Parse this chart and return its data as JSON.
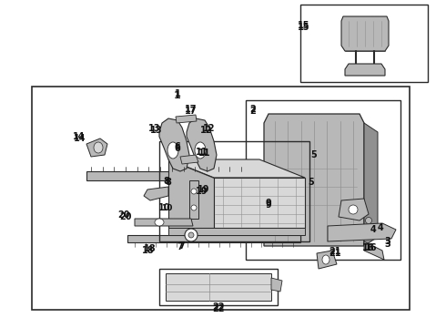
{
  "bg_color": "#ffffff",
  "lc": "#2a2a2a",
  "gray1": "#d8d8d8",
  "gray2": "#b8b8b8",
  "gray3": "#909090",
  "gray4": "#686868",
  "fig_width": 4.9,
  "fig_height": 3.6,
  "dpi": 100
}
